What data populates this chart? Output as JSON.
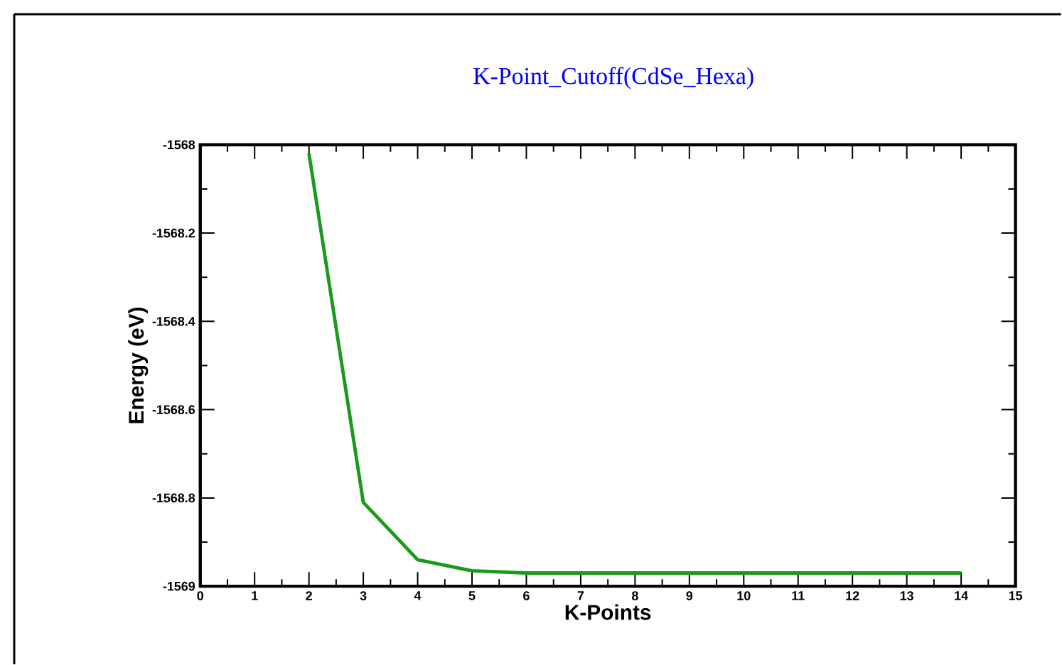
{
  "chart_data": {
    "type": "line",
    "title": "K-Point_Cutoff(CdSe_Hexa)",
    "xlabel": "K-Points",
    "ylabel": "Energy (eV)",
    "x": [
      2,
      3,
      4,
      5,
      6,
      7,
      8,
      9,
      10,
      11,
      12,
      13,
      14
    ],
    "series": [
      {
        "color": "#1a9a1a",
        "values": [
          -1568.02,
          -1568.81,
          -1568.94,
          -1568.965,
          -1568.97,
          -1568.97,
          -1568.97,
          -1568.97,
          -1568.97,
          -1568.97,
          -1568.97,
          -1568.97,
          -1568.97
        ]
      }
    ],
    "xlim": [
      0,
      15
    ],
    "ylim": [
      -1569,
      -1568
    ],
    "xticks": [
      0,
      1,
      2,
      3,
      4,
      5,
      6,
      7,
      8,
      9,
      10,
      11,
      12,
      13,
      14,
      15
    ],
    "yticks": [
      -1569,
      -1568.8,
      -1568.6,
      -1568.4,
      -1568.2,
      -1568
    ],
    "grid": false,
    "marker": "none",
    "line_style": "solid"
  }
}
